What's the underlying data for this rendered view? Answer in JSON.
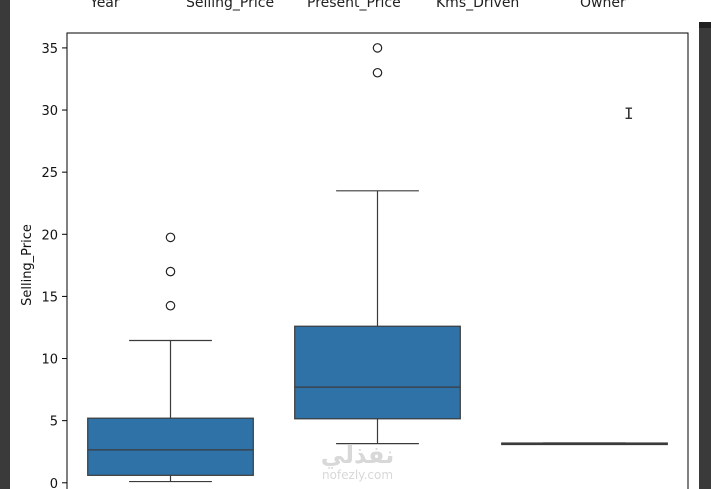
{
  "header": {
    "columns": [
      "Year",
      "Selling_Price",
      "Present_Price",
      "Kms_Driven",
      "Owner"
    ]
  },
  "watermark": {
    "arabic": "نفذلي",
    "latin": "nofezly.com"
  },
  "colors": {
    "box_fill": "#2e72a8",
    "box_edge": "#3b3b3b",
    "background": "#ffffff"
  },
  "chart_data": {
    "type": "box",
    "xlabel": "",
    "ylabel": "Selling_Price",
    "ylim": [
      -0.5,
      36.2
    ],
    "yticks": [
      0,
      5,
      10,
      15,
      20,
      25,
      30,
      35
    ],
    "grid": false,
    "series": [
      {
        "q1": 0.6,
        "median": 2.65,
        "q3": 5.2,
        "whisker_low": 0.1,
        "whisker_high": 11.45,
        "outliers": [
          14.25,
          17.0,
          19.75
        ]
      },
      {
        "q1": 5.15,
        "median": 7.7,
        "q3": 12.6,
        "whisker_low": 3.15,
        "whisker_high": 23.5,
        "outliers": [
          33.0,
          35.0
        ]
      },
      {
        "q1": 3.1,
        "median": 3.15,
        "q3": 3.2,
        "whisker_low": 3.1,
        "whisker_high": 3.2,
        "outliers": []
      }
    ]
  }
}
